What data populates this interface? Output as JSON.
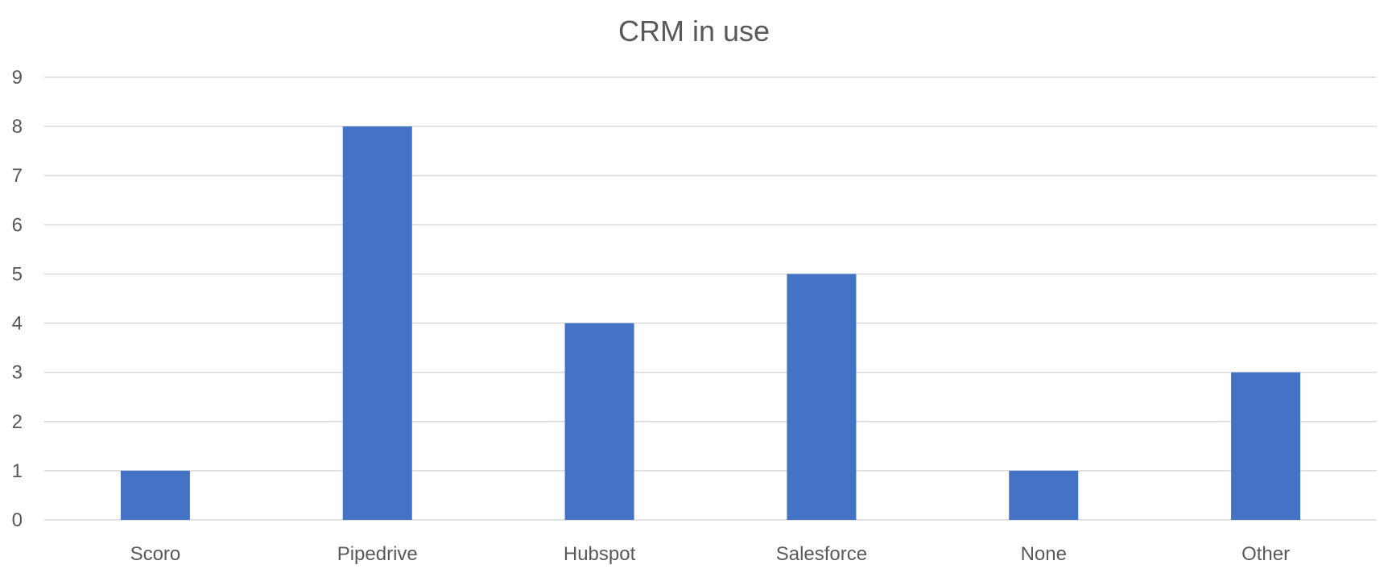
{
  "chart_data": {
    "type": "bar",
    "title": "CRM in use",
    "categories": [
      "Scoro",
      "Pipedrive",
      "Hubspot",
      "Salesforce",
      "None",
      "Other"
    ],
    "values": [
      1,
      8,
      4,
      5,
      1,
      3
    ],
    "ylim": [
      0,
      9
    ],
    "yticks": [
      "0",
      "1",
      "2",
      "3",
      "4",
      "5",
      "6",
      "7",
      "8",
      "9"
    ],
    "grid": true,
    "legend": "none",
    "bar_color": "#4472C4",
    "gridline_color": "#D9D9D9",
    "text_color": "#595959"
  }
}
